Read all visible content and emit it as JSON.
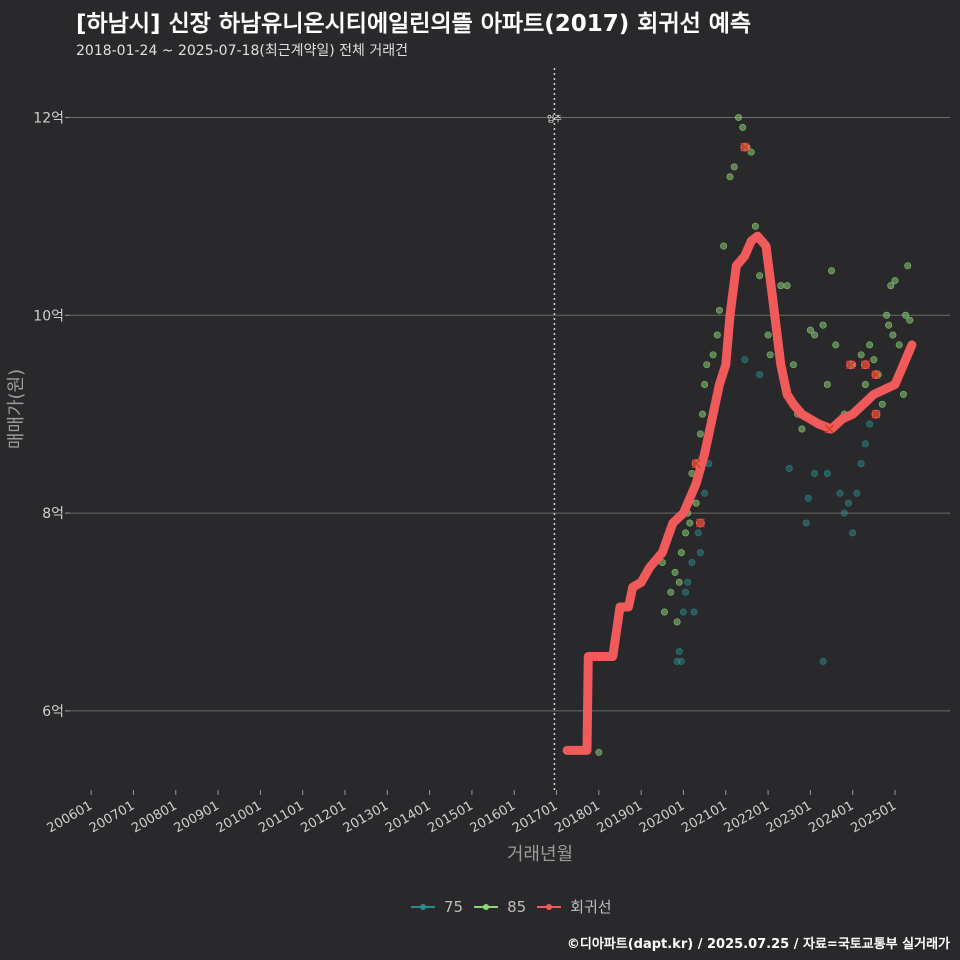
{
  "title": "[하남시] 신장 하남유니온시티에일린의뜰 아파트(2017) 회귀선 예측",
  "subtitle": "2018-01-24 ~ 2025-07-18(최근계약일) 전체 거래건",
  "caption": "©디아파트(dapt.kr) / 2025.07.25 / 자료=국토교통부 실거래가",
  "legend": {
    "items": [
      {
        "label": "75",
        "color": "#2a8c8c"
      },
      {
        "label": "85",
        "color": "#8fd87a"
      },
      {
        "label": "회귀선",
        "color": "#f05a5a"
      }
    ]
  },
  "chart_data": {
    "type": "scatter",
    "title": "[하남시] 신장 하남유니온시티에일린의뜰 아파트(2017) 회귀선 예측",
    "xlabel": "거래년월",
    "ylabel": "매매가(원)",
    "x_unit": "year (decimal)",
    "y_unit": "억원",
    "xlim": [
      2005.5,
      2026.3
    ],
    "ylim": [
      5.2,
      12.5
    ],
    "x_ticks": [
      {
        "value": 2006,
        "label": "200601"
      },
      {
        "value": 2007,
        "label": "200701"
      },
      {
        "value": 2008,
        "label": "200801"
      },
      {
        "value": 2009,
        "label": "200901"
      },
      {
        "value": 2010,
        "label": "201001"
      },
      {
        "value": 2011,
        "label": "201101"
      },
      {
        "value": 2012,
        "label": "201201"
      },
      {
        "value": 2013,
        "label": "201301"
      },
      {
        "value": 2014,
        "label": "201401"
      },
      {
        "value": 2015,
        "label": "201501"
      },
      {
        "value": 2016,
        "label": "201601"
      },
      {
        "value": 2017,
        "label": "201701"
      },
      {
        "value": 2018,
        "label": "201801"
      },
      {
        "value": 2019,
        "label": "201901"
      },
      {
        "value": 2020,
        "label": "202001"
      },
      {
        "value": 2021,
        "label": "202101"
      },
      {
        "value": 2022,
        "label": "202201"
      },
      {
        "value": 2023,
        "label": "202301"
      },
      {
        "value": 2024,
        "label": "202401"
      },
      {
        "value": 2025,
        "label": "202501"
      }
    ],
    "y_ticks": [
      {
        "value": 6,
        "label": "6억"
      },
      {
        "value": 8,
        "label": "8억"
      },
      {
        "value": 10,
        "label": "10억"
      },
      {
        "value": 12,
        "label": "12억"
      }
    ],
    "annotation": {
      "x": 2016.95,
      "label": "입주"
    },
    "series": [
      {
        "name": "75",
        "color": "#2a8c8c",
        "points": [
          [
            2019.85,
            6.5
          ],
          [
            2019.9,
            6.6
          ],
          [
            2019.95,
            6.5
          ],
          [
            2020.0,
            7.0
          ],
          [
            2020.05,
            7.2
          ],
          [
            2020.1,
            7.3
          ],
          [
            2020.2,
            7.5
          ],
          [
            2020.25,
            7.0
          ],
          [
            2020.35,
            7.8
          ],
          [
            2020.4,
            7.6
          ],
          [
            2020.5,
            8.2
          ],
          [
            2020.6,
            8.5
          ],
          [
            2021.45,
            9.55
          ],
          [
            2021.8,
            9.4
          ],
          [
            2022.5,
            8.45
          ],
          [
            2022.9,
            7.9
          ],
          [
            2022.95,
            8.15
          ],
          [
            2023.1,
            8.4
          ],
          [
            2023.3,
            6.5
          ],
          [
            2023.4,
            8.4
          ],
          [
            2023.7,
            8.2
          ],
          [
            2023.8,
            8.0
          ],
          [
            2023.9,
            8.1
          ],
          [
            2024.0,
            7.8
          ],
          [
            2024.1,
            8.2
          ],
          [
            2024.2,
            8.5
          ],
          [
            2024.3,
            8.7
          ],
          [
            2024.4,
            8.9
          ]
        ]
      },
      {
        "name": "85",
        "color": "#8fd87a",
        "points": [
          [
            2018.0,
            5.58
          ],
          [
            2019.5,
            7.5
          ],
          [
            2019.55,
            7.0
          ],
          [
            2019.7,
            7.2
          ],
          [
            2019.8,
            7.4
          ],
          [
            2019.85,
            6.9
          ],
          [
            2019.9,
            7.3
          ],
          [
            2019.95,
            7.6
          ],
          [
            2020.05,
            7.8
          ],
          [
            2020.1,
            8.0
          ],
          [
            2020.15,
            7.9
          ],
          [
            2020.2,
            8.4
          ],
          [
            2020.3,
            8.1
          ],
          [
            2020.35,
            8.5
          ],
          [
            2020.4,
            8.8
          ],
          [
            2020.45,
            9.0
          ],
          [
            2020.5,
            9.3
          ],
          [
            2020.55,
            9.5
          ],
          [
            2020.7,
            9.6
          ],
          [
            2020.8,
            9.8
          ],
          [
            2020.85,
            10.05
          ],
          [
            2020.95,
            10.7
          ],
          [
            2021.1,
            11.4
          ],
          [
            2021.2,
            11.5
          ],
          [
            2021.3,
            12.0
          ],
          [
            2021.4,
            11.9
          ],
          [
            2021.5,
            11.7
          ],
          [
            2021.6,
            11.65
          ],
          [
            2021.7,
            10.9
          ],
          [
            2021.8,
            10.4
          ],
          [
            2022.0,
            9.8
          ],
          [
            2022.05,
            9.6
          ],
          [
            2022.3,
            10.3
          ],
          [
            2022.45,
            10.3
          ],
          [
            2022.6,
            9.5
          ],
          [
            2022.7,
            9.0
          ],
          [
            2022.8,
            8.85
          ],
          [
            2023.0,
            9.85
          ],
          [
            2023.1,
            9.8
          ],
          [
            2023.3,
            9.9
          ],
          [
            2023.4,
            9.3
          ],
          [
            2023.5,
            10.45
          ],
          [
            2023.6,
            9.7
          ],
          [
            2023.8,
            9.0
          ],
          [
            2024.0,
            9.5
          ],
          [
            2024.2,
            9.6
          ],
          [
            2024.3,
            9.3
          ],
          [
            2024.4,
            9.7
          ],
          [
            2024.5,
            9.55
          ],
          [
            2024.6,
            9.4
          ],
          [
            2024.7,
            9.1
          ],
          [
            2024.8,
            10.0
          ],
          [
            2024.85,
            9.9
          ],
          [
            2024.9,
            10.3
          ],
          [
            2024.95,
            9.8
          ],
          [
            2025.0,
            10.35
          ],
          [
            2025.1,
            9.7
          ],
          [
            2025.2,
            9.2
          ],
          [
            2025.25,
            10.0
          ],
          [
            2025.3,
            10.5
          ],
          [
            2025.35,
            9.95
          ]
        ]
      }
    ],
    "outliers": [
      [
        2020.3,
        8.5
      ],
      [
        2020.4,
        7.9
      ],
      [
        2021.45,
        11.7
      ],
      [
        2023.45,
        8.85
      ],
      [
        2023.95,
        9.5
      ],
      [
        2024.3,
        9.5
      ],
      [
        2024.55,
        9.4
      ],
      [
        2024.55,
        9.0
      ]
    ],
    "regression": {
      "name": "회귀선",
      "color": "#f05a5a",
      "points": [
        [
          2017.25,
          5.6
        ],
        [
          2017.72,
          5.6
        ],
        [
          2017.75,
          6.55
        ],
        [
          2018.33,
          6.55
        ],
        [
          2018.5,
          7.05
        ],
        [
          2018.7,
          7.05
        ],
        [
          2018.8,
          7.25
        ],
        [
          2019.0,
          7.3
        ],
        [
          2019.2,
          7.45
        ],
        [
          2019.5,
          7.6
        ],
        [
          2019.75,
          7.9
        ],
        [
          2020.0,
          8.0
        ],
        [
          2020.3,
          8.3
        ],
        [
          2020.5,
          8.6
        ],
        [
          2020.7,
          9.0
        ],
        [
          2020.85,
          9.3
        ],
        [
          2021.0,
          9.5
        ],
        [
          2021.1,
          10.0
        ],
        [
          2021.25,
          10.5
        ],
        [
          2021.45,
          10.6
        ],
        [
          2021.6,
          10.75
        ],
        [
          2021.75,
          10.8
        ],
        [
          2021.95,
          10.7
        ],
        [
          2022.1,
          10.2
        ],
        [
          2022.3,
          9.5
        ],
        [
          2022.45,
          9.2
        ],
        [
          2022.6,
          9.1
        ],
        [
          2022.8,
          9.0
        ],
        [
          2023.0,
          8.95
        ],
        [
          2023.2,
          8.9
        ],
        [
          2023.5,
          8.85
        ],
        [
          2023.75,
          8.95
        ],
        [
          2024.0,
          9.0
        ],
        [
          2024.25,
          9.1
        ],
        [
          2024.5,
          9.2
        ],
        [
          2024.75,
          9.25
        ],
        [
          2025.0,
          9.3
        ],
        [
          2025.2,
          9.5
        ],
        [
          2025.4,
          9.7
        ]
      ]
    }
  }
}
